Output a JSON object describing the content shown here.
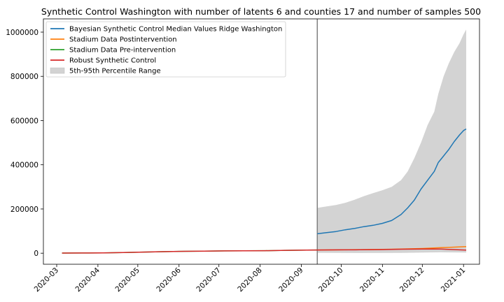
{
  "chart_data": {
    "type": "line",
    "title": "Synthetic Control Washington with number of latents 6 and counties 17 and number of samples 500",
    "xlabel": "",
    "ylabel": "",
    "x_range": [
      "2020-02-20",
      "2021-01-13"
    ],
    "ylim": [
      -50000,
      1060000
    ],
    "x_ticks": [
      "2020-03",
      "2020-04",
      "2020-05",
      "2020-06",
      "2020-07",
      "2020-08",
      "2020-09",
      "2020-10",
      "2020-11",
      "2020-12",
      "2021-01"
    ],
    "y_ticks": [
      0,
      200000,
      400000,
      600000,
      800000,
      1000000
    ],
    "intervention_date": "2020-09-13",
    "legend_position": "top-left",
    "grid": false,
    "series": [
      {
        "name": "Bayesian Synthetic Control Median Values Ridge Washington",
        "color": "#1f77b4",
        "points": [
          [
            "2020-09-13",
            88000
          ],
          [
            "2020-09-20",
            93000
          ],
          [
            "2020-09-27",
            98000
          ],
          [
            "2020-10-04",
            106000
          ],
          [
            "2020-10-11",
            112000
          ],
          [
            "2020-10-18",
            120000
          ],
          [
            "2020-10-25",
            126000
          ],
          [
            "2020-11-01",
            135000
          ],
          [
            "2020-11-08",
            148000
          ],
          [
            "2020-11-15",
            175000
          ],
          [
            "2020-11-20",
            205000
          ],
          [
            "2020-11-25",
            240000
          ],
          [
            "2020-11-30",
            290000
          ],
          [
            "2020-12-05",
            330000
          ],
          [
            "2020-12-10",
            370000
          ],
          [
            "2020-12-13",
            410000
          ],
          [
            "2020-12-17",
            440000
          ],
          [
            "2020-12-21",
            470000
          ],
          [
            "2020-12-25",
            505000
          ],
          [
            "2020-12-29",
            535000
          ],
          [
            "2021-01-01",
            555000
          ],
          [
            "2021-01-03",
            562000
          ]
        ]
      },
      {
        "name": "Stadium Data Postintervention",
        "color": "#ff7f0e",
        "points": [
          [
            "2020-09-13",
            14500
          ],
          [
            "2020-10-01",
            15000
          ],
          [
            "2020-10-15",
            16000
          ],
          [
            "2020-11-01",
            17000
          ],
          [
            "2020-11-15",
            19000
          ],
          [
            "2020-12-01",
            21000
          ],
          [
            "2020-12-15",
            25000
          ],
          [
            "2021-01-03",
            30000
          ]
        ]
      },
      {
        "name": "Stadium Data Pre-intervention",
        "color": "#2ca02c",
        "points": [
          [
            "2020-03-05",
            500
          ],
          [
            "2020-03-20",
            1000
          ],
          [
            "2020-04-05",
            1500
          ],
          [
            "2020-04-20",
            3000
          ],
          [
            "2020-05-05",
            5000
          ],
          [
            "2020-05-20",
            7000
          ],
          [
            "2020-06-05",
            8500
          ],
          [
            "2020-06-20",
            9500
          ],
          [
            "2020-07-05",
            10500
          ],
          [
            "2020-07-20",
            11000
          ],
          [
            "2020-08-05",
            11500
          ],
          [
            "2020-08-20",
            13000
          ],
          [
            "2020-09-05",
            14000
          ],
          [
            "2020-09-13",
            14500
          ]
        ]
      },
      {
        "name": "Robust Synthetic Control",
        "color": "#d62728",
        "points": [
          [
            "2020-03-05",
            500
          ],
          [
            "2020-03-20",
            1000
          ],
          [
            "2020-04-05",
            1500
          ],
          [
            "2020-04-20",
            3000
          ],
          [
            "2020-05-05",
            5000
          ],
          [
            "2020-05-20",
            7000
          ],
          [
            "2020-06-05",
            8500
          ],
          [
            "2020-06-20",
            9500
          ],
          [
            "2020-07-05",
            10500
          ],
          [
            "2020-07-20",
            11000
          ],
          [
            "2020-08-05",
            11500
          ],
          [
            "2020-08-20",
            13000
          ],
          [
            "2020-09-05",
            14000
          ],
          [
            "2020-09-13",
            14500
          ],
          [
            "2020-10-01",
            15000
          ],
          [
            "2020-10-15",
            15500
          ],
          [
            "2020-11-01",
            16500
          ],
          [
            "2020-11-15",
            18000
          ],
          [
            "2020-12-01",
            19000
          ],
          [
            "2020-12-15",
            18500
          ],
          [
            "2021-01-03",
            14000
          ]
        ]
      }
    ],
    "band": {
      "name": "5th-95th Percentile Range",
      "color": "#d3d3d3",
      "upper": [
        [
          "2020-09-13",
          205000
        ],
        [
          "2020-09-20",
          212000
        ],
        [
          "2020-09-27",
          218000
        ],
        [
          "2020-10-04",
          228000
        ],
        [
          "2020-10-11",
          242000
        ],
        [
          "2020-10-18",
          258000
        ],
        [
          "2020-10-25",
          272000
        ],
        [
          "2020-11-01",
          285000
        ],
        [
          "2020-11-08",
          300000
        ],
        [
          "2020-11-15",
          330000
        ],
        [
          "2020-11-20",
          370000
        ],
        [
          "2020-11-25",
          430000
        ],
        [
          "2020-11-30",
          500000
        ],
        [
          "2020-12-05",
          580000
        ],
        [
          "2020-12-10",
          640000
        ],
        [
          "2020-12-13",
          720000
        ],
        [
          "2020-12-17",
          800000
        ],
        [
          "2020-12-21",
          860000
        ],
        [
          "2020-12-25",
          910000
        ],
        [
          "2020-12-29",
          950000
        ],
        [
          "2021-01-01",
          990000
        ],
        [
          "2021-01-03",
          1012000
        ]
      ],
      "lower": [
        [
          "2020-09-13",
          2000
        ],
        [
          "2020-10-15",
          1000
        ],
        [
          "2020-11-15",
          1500
        ],
        [
          "2020-12-15",
          4000
        ],
        [
          "2021-01-03",
          3000
        ]
      ]
    }
  }
}
